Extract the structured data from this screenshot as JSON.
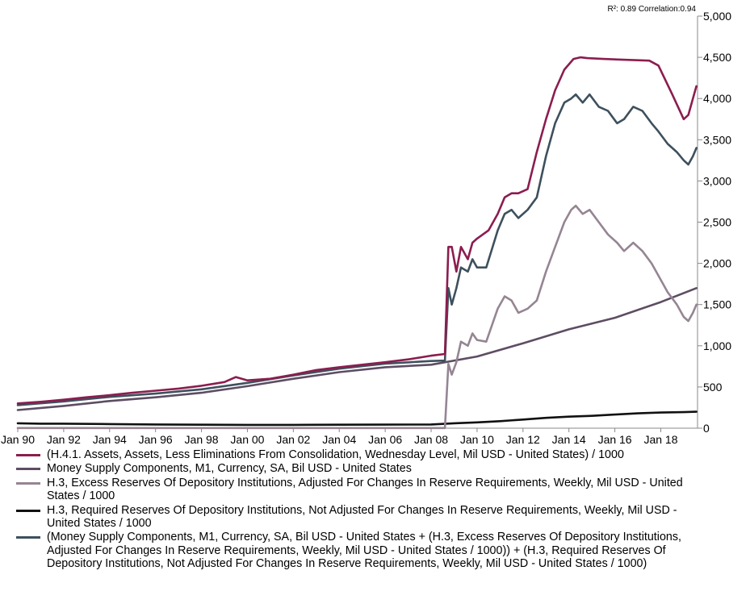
{
  "stats_text": "R²: 0.89 Correlation:0.94",
  "chart_data": {
    "type": "line",
    "title": "",
    "xlabel": "",
    "ylabel": "",
    "x_range": [
      1990.0,
      2019.6
    ],
    "ylim": [
      0,
      5000
    ],
    "y_ticks": [
      0,
      500,
      1000,
      1500,
      2000,
      2500,
      3000,
      3500,
      4000,
      4500,
      5000
    ],
    "y_tick_labels": [
      "0",
      "500",
      "1,000",
      "1,500",
      "2,000",
      "2,500",
      "3,000",
      "3,500",
      "4,000",
      "4,500",
      "5,000"
    ],
    "x_ticks": [
      1990,
      1992,
      1994,
      1996,
      1998,
      2000,
      2002,
      2004,
      2006,
      2008,
      2010,
      2012,
      2014,
      2016,
      2018
    ],
    "x_tick_labels": [
      "Jan 90",
      "Jan 92",
      "Jan 94",
      "Jan 96",
      "Jan 98",
      "Jan 00",
      "Jan 02",
      "Jan 04",
      "Jan 06",
      "Jan 08",
      "Jan 10",
      "Jan 12",
      "Jan 14",
      "Jan 16",
      "Jan 18"
    ],
    "y_axis_side": "right",
    "grid": false,
    "legend_position": "bottom",
    "series": [
      {
        "name": "(H.4.1. Assets, Assets, Less Eliminations From Consolidation, Wednesday Level, Mil USD - United States) / 1000",
        "color": "#8b1d4f",
        "x": [
          1990.0,
          1991.0,
          1992.0,
          1993.0,
          1994.0,
          1995.0,
          1996.0,
          1997.0,
          1998.0,
          1999.0,
          1999.5,
          2000.0,
          2001.0,
          2002.0,
          2003.0,
          2004.0,
          2005.0,
          2006.0,
          2007.0,
          2008.0,
          2008.6,
          2008.75,
          2008.9,
          2009.1,
          2009.3,
          2009.6,
          2009.8,
          2010.0,
          2010.5,
          2010.9,
          2011.2,
          2011.5,
          2011.8,
          2012.2,
          2012.6,
          2013.0,
          2013.4,
          2013.8,
          2014.2,
          2014.5,
          2014.8,
          2015.5,
          2016.5,
          2017.5,
          2017.9,
          2018.5,
          2019.0,
          2019.2,
          2019.4,
          2019.55
        ],
        "values": [
          300,
          320,
          345,
          375,
          400,
          430,
          455,
          480,
          515,
          560,
          620,
          580,
          600,
          650,
          705,
          740,
          770,
          800,
          835,
          880,
          900,
          2200,
          2200,
          1900,
          2200,
          2050,
          2250,
          2300,
          2400,
          2600,
          2800,
          2850,
          2850,
          2900,
          3350,
          3750,
          4100,
          4350,
          4480,
          4500,
          4490,
          4480,
          4470,
          4460,
          4400,
          4050,
          3750,
          3800,
          4000,
          4150
        ]
      },
      {
        "name": "Money Supply Components, M1, Currency, SA, Bil USD - United States",
        "color": "#5d4d63",
        "x": [
          1990.0,
          1992.0,
          1994.0,
          1996.0,
          1998.0,
          2000.0,
          2002.0,
          2004.0,
          2006.0,
          2008.0,
          2010.0,
          2012.0,
          2014.0,
          2016.0,
          2018.0,
          2019.55
        ],
        "values": [
          220,
          270,
          330,
          375,
          430,
          510,
          600,
          680,
          740,
          770,
          870,
          1030,
          1200,
          1340,
          1530,
          1700
        ]
      },
      {
        "name": "H.3, Excess Reserves Of Depository Institutions, Adjusted For Changes In Reserve Requirements, Weekly, Mil USD - United States / 1000",
        "color": "#958593",
        "x": [
          1990.0,
          2008.0,
          2008.6,
          2008.75,
          2008.9,
          2009.1,
          2009.3,
          2009.6,
          2009.8,
          2010.0,
          2010.4,
          2010.9,
          2011.2,
          2011.5,
          2011.8,
          2012.2,
          2012.6,
          2013.0,
          2013.4,
          2013.8,
          2014.1,
          2014.3,
          2014.6,
          2014.9,
          2015.3,
          2015.7,
          2016.1,
          2016.4,
          2016.8,
          2017.2,
          2017.6,
          2017.9,
          2018.3,
          2018.7,
          2019.0,
          2019.2,
          2019.4,
          2019.55
        ],
        "values": [
          2,
          2,
          2,
          780,
          650,
          800,
          1050,
          1000,
          1150,
          1070,
          1050,
          1450,
          1600,
          1550,
          1400,
          1450,
          1550,
          1900,
          2200,
          2500,
          2650,
          2700,
          2600,
          2650,
          2500,
          2350,
          2250,
          2150,
          2250,
          2150,
          2000,
          1850,
          1650,
          1500,
          1350,
          1300,
          1400,
          1500
        ]
      },
      {
        "name": "H.3, Required Reserves Of Depository Institutions, Not Adjusted For Changes In Reserve Requirements, Weekly, Mil USD - United States / 1000",
        "color": "#111111",
        "x": [
          1990.0,
          1991.0,
          1992.0,
          1994.0,
          1996.0,
          1998.0,
          2000.0,
          2002.0,
          2004.0,
          2006.0,
          2008.0,
          2009.0,
          2010.0,
          2011.0,
          2012.0,
          2013.0,
          2014.0,
          2015.0,
          2016.0,
          2017.0,
          2018.0,
          2019.0,
          2019.55
        ],
        "values": [
          60,
          55,
          55,
          50,
          45,
          42,
          40,
          40,
          42,
          43,
          45,
          60,
          70,
          85,
          105,
          125,
          140,
          150,
          165,
          180,
          190,
          195,
          200
        ]
      },
      {
        "name": "(Money Supply Components, M1, Currency, SA, Bil USD - United States + (H.3, Excess Reserves Of Depository Institutions, Adjusted For Changes In Reserve Requirements, Weekly, Mil USD - United States / 1000)) + (H.3, Required Reserves Of Depository Institutions, Not Adjusted For Changes In Reserve Requirements, Weekly, Mil USD - United States / 1000)",
        "color": "#3e505d",
        "x": [
          1990.0,
          1992.0,
          1994.0,
          1996.0,
          1998.0,
          2000.0,
          2002.0,
          2004.0,
          2006.0,
          2008.0,
          2008.6,
          2008.75,
          2008.9,
          2009.1,
          2009.3,
          2009.6,
          2009.8,
          2010.0,
          2010.4,
          2010.9,
          2011.2,
          2011.5,
          2011.8,
          2012.2,
          2012.6,
          2013.0,
          2013.4,
          2013.8,
          2014.1,
          2014.3,
          2014.6,
          2014.9,
          2015.3,
          2015.7,
          2016.1,
          2016.4,
          2016.8,
          2017.2,
          2017.6,
          2017.9,
          2018.3,
          2018.7,
          2019.0,
          2019.2,
          2019.4,
          2019.55
        ],
        "values": [
          280,
          325,
          380,
          420,
          472,
          550,
          640,
          722,
          783,
          815,
          820,
          1700,
          1500,
          1700,
          1950,
          1900,
          2050,
          1950,
          1950,
          2400,
          2600,
          2650,
          2550,
          2650,
          2800,
          3300,
          3700,
          3950,
          4000,
          4050,
          3950,
          4050,
          3900,
          3850,
          3700,
          3750,
          3900,
          3850,
          3700,
          3600,
          3450,
          3350,
          3250,
          3200,
          3300,
          3400
        ]
      }
    ]
  }
}
